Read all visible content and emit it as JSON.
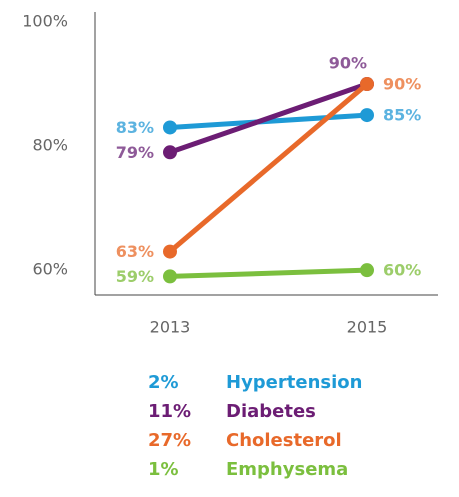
{
  "chart_data": {
    "type": "line",
    "categories": [
      "2013",
      "2015"
    ],
    "series": [
      {
        "name": "Hypertension",
        "color": "#1e9ad6",
        "label_color": "#5cb3e0",
        "change": "2%",
        "values": [
          83,
          85
        ],
        "value_labels": [
          "83%",
          "85%"
        ]
      },
      {
        "name": "Diabetes",
        "color": "#6c1d74",
        "label_color": "#8e5a98",
        "change": "11%",
        "values": [
          79,
          90
        ],
        "value_labels": [
          "79%",
          "90%"
        ]
      },
      {
        "name": "Cholesterol",
        "color": "#e8692a",
        "label_color": "#ee905f",
        "change": "27%",
        "values": [
          63,
          90
        ],
        "value_labels": [
          "63%",
          "90%"
        ]
      },
      {
        "name": "Emphysema",
        "color": "#7bbf3e",
        "label_color": "#9ccd6a",
        "change": "1%",
        "values": [
          59,
          60
        ],
        "value_labels": [
          "59%",
          "60%"
        ]
      }
    ],
    "ylim": [
      56,
      100
    ],
    "yticks": [
      {
        "value": 60,
        "label": "60%"
      },
      {
        "value": 80,
        "label": "80%"
      },
      {
        "value": 100,
        "label": "100%"
      }
    ],
    "grid": false
  }
}
